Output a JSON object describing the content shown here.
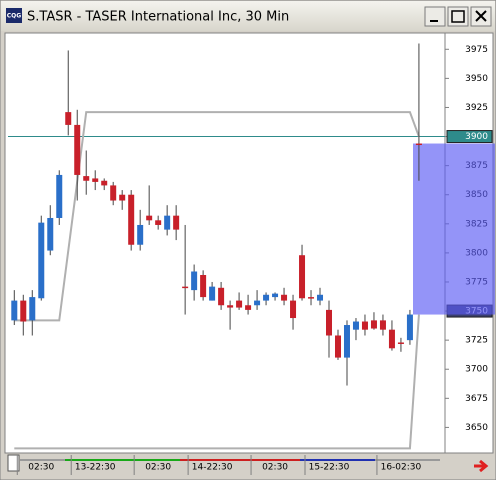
{
  "chart_data": {
    "type": "candlestick",
    "title": "S.TASR - TASER International Inc, 30 Min",
    "up_color": "#2a6fc9",
    "down_color": "#c8202a",
    "flat_color": "#777777",
    "open": [
      3742,
      3759,
      3742,
      3761,
      3802,
      3830,
      3921,
      3910,
      3866,
      3864,
      3862,
      3858,
      3850,
      3850,
      3807,
      3832,
      3828,
      3820,
      3832,
      3771,
      3768,
      3781,
      3759,
      3770,
      3755,
      3759,
      3755,
      3755,
      3759,
      3762,
      3764,
      3759,
      3798,
      3762,
      3759,
      3751,
      3729,
      3710,
      3734,
      3741,
      3742,
      3742,
      3734,
      3723,
      3725,
      3894
    ],
    "high": [
      3768,
      3764,
      3768,
      3832,
      3841,
      3871,
      3974,
      3923,
      3888,
      3871,
      3864,
      3861,
      3854,
      3854,
      3837,
      3858,
      3832,
      3841,
      3841,
      3824,
      3790,
      3785,
      3775,
      3775,
      3759,
      3766,
      3764,
      3768,
      3766,
      3766,
      3770,
      3764,
      3807,
      3768,
      3770,
      3759,
      3734,
      3742,
      3744,
      3747,
      3749,
      3747,
      3742,
      3727,
      3751,
      3980
    ],
    "low": [
      3738,
      3729,
      3729,
      3759,
      3798,
      3824,
      3901,
      3845,
      3850,
      3854,
      3854,
      3841,
      3837,
      3802,
      3802,
      3824,
      3820,
      3815,
      3811,
      3747,
      3759,
      3759,
      3759,
      3751,
      3734,
      3751,
      3747,
      3751,
      3755,
      3759,
      3755,
      3734,
      3759,
      3755,
      3755,
      3710,
      3708,
      3686,
      3725,
      3729,
      3734,
      3729,
      3716,
      3715,
      3721,
      3862
    ],
    "close": [
      3759,
      3741,
      3762,
      3826,
      3830,
      3867,
      3910,
      3867,
      3862,
      3861,
      3858,
      3845,
      3845,
      3807,
      3824,
      3828,
      3824,
      3832,
      3820,
      3770,
      3784,
      3762,
      3771,
      3755,
      3753,
      3753,
      3751,
      3759,
      3764,
      3765,
      3759,
      3744,
      3761,
      3761,
      3764,
      3729,
      3710,
      3738,
      3741,
      3734,
      3735,
      3734,
      3718,
      3722,
      3747,
      3893
    ],
    "overlay": [
      {
        "color": "#b0b0b0",
        "x": [
          0,
          5,
          8,
          44,
          45
        ],
        "values": [
          3742,
          3742,
          3921,
          3921,
          3900
        ]
      },
      {
        "color": "#b0b0b0",
        "x": [
          0,
          44,
          45
        ],
        "values": [
          3632,
          3632,
          3747
        ]
      }
    ],
    "price_line": {
      "value": 3900,
      "color": "#2e8b8b"
    },
    "marker_line": 3750,
    "highlight_range": [
      3747,
      3894
    ],
    "ylim": [
      3628,
      3989
    ],
    "yticks": [
      3650,
      3675,
      3700,
      3725,
      3750,
      3775,
      3800,
      3825,
      3850,
      3875,
      3900,
      3925,
      3950,
      3975
    ],
    "xlim": [
      -0.7,
      47.9
    ],
    "xticks": [
      {
        "value": 3,
        "label": "02:30"
      },
      {
        "value": 9,
        "label": "13-22:30"
      },
      {
        "value": 16,
        "label": "02:30"
      },
      {
        "value": 22,
        "label": "14-22:30"
      },
      {
        "value": 29,
        "label": "02:30"
      },
      {
        "value": 35,
        "label": "15-22:30"
      },
      {
        "value": 43,
        "label": "16-02:30"
      }
    ]
  }
}
